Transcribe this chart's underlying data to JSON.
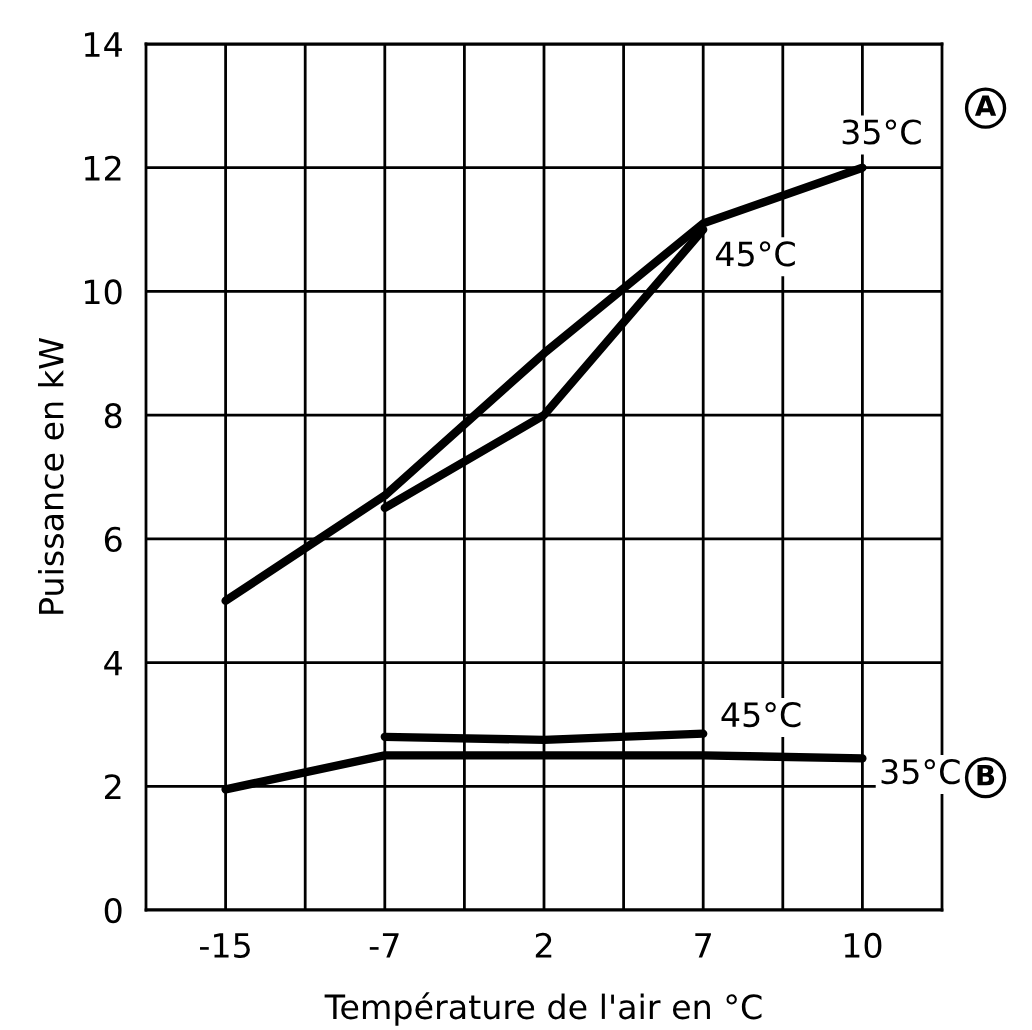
{
  "chart_data": {
    "type": "line",
    "xlabel": "Température de l'air en °C",
    "ylabel": "Puissance en kW",
    "categories": [
      "-15",
      "-7",
      "2",
      "7",
      "10"
    ],
    "series": [
      {
        "name": "35°C",
        "color": "#000000",
        "values": [
          5.0,
          6.7,
          9.0,
          11.1,
          12.0
        ]
      },
      {
        "name": "45°C",
        "color": "#000000",
        "values": [
          null,
          6.5,
          8.0,
          11.0,
          null
        ]
      },
      {
        "name": "45°C",
        "color": "#000000",
        "values": [
          null,
          2.8,
          2.75,
          2.85,
          null
        ]
      },
      {
        "name": "35°C",
        "color": "#000000",
        "values": [
          1.95,
          2.5,
          2.5,
          2.5,
          2.45
        ]
      }
    ],
    "annotations": [
      "A",
      "B"
    ],
    "ylim": [
      0,
      14
    ],
    "yticks": [
      0,
      2,
      4,
      6,
      8,
      10,
      12,
      14
    ],
    "grid": true,
    "marker": "none",
    "line_style": "solid"
  }
}
